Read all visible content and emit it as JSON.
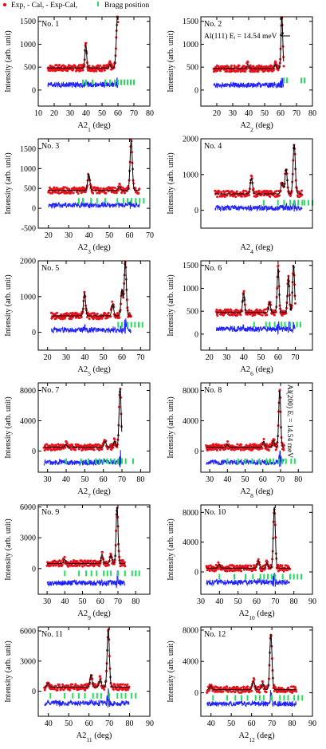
{
  "legend": {
    "exp_label": "Exp, - Cal, - Exp-Cal,",
    "bragg_label": "Bragg position"
  },
  "colors": {
    "exp": "#e8121d",
    "cal": "#000000",
    "diff": "#1f22ff",
    "bragg": "#22e05a"
  },
  "chart_data": [
    {
      "type": "scatter",
      "id": "No. 1",
      "title": "No. 1",
      "xlabel": "A2",
      "xsub": "1",
      "ylabel": "Intensity (arb. unit)",
      "xlim": [
        10,
        80
      ],
      "ylim": [
        -350,
        1600
      ],
      "xticks": [
        10,
        20,
        30,
        40,
        50,
        60,
        70,
        80
      ],
      "yticks": [
        0,
        500,
        1000,
        1500
      ],
      "data_range": [
        16,
        60
      ],
      "baseline": 480,
      "diff_offset": 120,
      "peaks": [
        {
          "x": 39.8,
          "y": 1000
        },
        {
          "x": 55,
          "y": 560
        },
        {
          "x": 58.9,
          "y": 800
        },
        {
          "x": 59.8,
          "y": 1550
        }
      ],
      "bragg_y": 160,
      "bragg_x": [
        38,
        40,
        44,
        52,
        55,
        58,
        60,
        62,
        64,
        66,
        68,
        70
      ]
    },
    {
      "type": "scatter",
      "id": "No. 2",
      "title": "No. 2",
      "xlabel": "A2",
      "xsub": "2",
      "ylabel": "Intensity (arb. unit)",
      "xlim": [
        10,
        80
      ],
      "ylim": [
        -350,
        1600
      ],
      "xticks": [
        20,
        30,
        40,
        50,
        60,
        70,
        80
      ],
      "yticks": [
        0,
        500,
        1000,
        1500
      ],
      "data_range": [
        18,
        62
      ],
      "baseline": 470,
      "diff_offset": 110,
      "peaks": [
        {
          "x": 39.5,
          "y": 560
        },
        {
          "x": 56.8,
          "y": 560
        },
        {
          "x": 60.8,
          "y": 1620
        }
      ],
      "bragg_y": 200,
      "bragg_x": [
        62,
        64,
        73,
        75
      ],
      "annotation": "Al(111) Eᵢ = 14.54 meV"
    },
    {
      "type": "scatter",
      "id": "No. 3",
      "title": "No. 3",
      "xlabel": "A2",
      "xsub": "3",
      "ylabel": "Intensity (arb. unit)",
      "xlim": [
        15,
        70
      ],
      "ylim": [
        -500,
        1750
      ],
      "xticks": [
        20,
        30,
        40,
        50,
        60,
        70
      ],
      "yticks": [
        -500,
        0,
        500,
        1000,
        1500
      ],
      "data_range": [
        20,
        65
      ],
      "baseline": 450,
      "diff_offset": 80,
      "peaks": [
        {
          "x": 39.9,
          "y": 860
        },
        {
          "x": 55,
          "y": 540
        },
        {
          "x": 60.8,
          "y": 1700
        }
      ],
      "bragg_y": 180,
      "bragg_x": [
        35,
        37,
        41,
        44,
        48,
        54,
        57,
        59,
        61,
        63,
        65,
        67
      ]
    },
    {
      "type": "scatter",
      "id": "No. 4",
      "title": "No. 4",
      "xlabel": "A2",
      "xsub": "4",
      "ylabel": "Intensity (arb. unit)",
      "xlim": [
        15,
        70
      ],
      "ylim": [
        -500,
        2000
      ],
      "xticks": [],
      "yticks": [
        0,
        1000,
        2000
      ],
      "data_range": [
        22,
        65
      ],
      "baseline": 460,
      "diff_offset": 60,
      "peaks": [
        {
          "x": 39.9,
          "y": 900
        },
        {
          "x": 55,
          "y": 780
        },
        {
          "x": 57,
          "y": 1150
        },
        {
          "x": 61,
          "y": 1850
        }
      ],
      "bragg_y": 200,
      "bragg_x": [
        46,
        53,
        56,
        59,
        61,
        63,
        65,
        66,
        68,
        70
      ]
    },
    {
      "type": "scatter",
      "id": "No. 5",
      "title": "No. 5",
      "xlabel": "A2",
      "xsub": "5",
      "ylabel": "Intensity (arb. unit)",
      "xlim": [
        15,
        75
      ],
      "ylim": [
        -500,
        2000
      ],
      "xticks": [
        20,
        30,
        40,
        50,
        60,
        70
      ],
      "yticks": [
        0,
        1000,
        2000
      ],
      "data_range": [
        22,
        65
      ],
      "baseline": 460,
      "diff_offset": 60,
      "peaks": [
        {
          "x": 39.9,
          "y": 1100
        },
        {
          "x": 55,
          "y": 800
        },
        {
          "x": 60,
          "y": 1200
        },
        {
          "x": 61.8,
          "y": 2000
        }
      ],
      "bragg_y": 200,
      "bragg_x": [
        58,
        60,
        63,
        65,
        67,
        69,
        71
      ]
    },
    {
      "type": "scatter",
      "id": "No. 6",
      "title": "No. 6",
      "xlabel": "A2",
      "xsub": "6",
      "ylabel": "Intensity (arb. unit)",
      "xlim": [
        15,
        80
      ],
      "ylim": [
        -350,
        1600
      ],
      "xticks": [
        20,
        30,
        40,
        50,
        60,
        70
      ],
      "yticks": [
        0,
        500,
        1000,
        1500
      ],
      "data_range": [
        24,
        70
      ],
      "baseline": 470,
      "diff_offset": 110,
      "peaks": [
        {
          "x": 39.9,
          "y": 900
        },
        {
          "x": 55,
          "y": 700
        },
        {
          "x": 60,
          "y": 1450
        },
        {
          "x": 66,
          "y": 1250
        },
        {
          "x": 69,
          "y": 1500
        }
      ],
      "bragg_y": 200,
      "bragg_x": [
        46,
        53,
        55,
        58,
        62,
        64,
        67,
        71,
        73
      ]
    },
    {
      "type": "scatter",
      "id": "No. 7",
      "title": "No. 7",
      "xlabel": "A2",
      "xsub": "7",
      "ylabel": "Intensity (arb. unit)",
      "xlim": [
        25,
        85
      ],
      "ylim": [
        -2800,
        9000
      ],
      "xticks": [
        30,
        40,
        50,
        60,
        70,
        80
      ],
      "yticks": [
        0,
        4000,
        8000
      ],
      "data_range": [
        28,
        70
      ],
      "baseline": 500,
      "diff_offset": -1500,
      "peaks": [
        {
          "x": 39.8,
          "y": 900
        },
        {
          "x": 61,
          "y": 1300
        },
        {
          "x": 66,
          "y": 1300
        },
        {
          "x": 69,
          "y": 8300
        }
      ],
      "bragg_y": -1400,
      "bragg_x": [
        40,
        48,
        52,
        56,
        58,
        60,
        62,
        64,
        66,
        68,
        70,
        72,
        76
      ]
    },
    {
      "type": "scatter",
      "id": "No. 8",
      "title": "No. 8",
      "xlabel": "A2",
      "xsub": "8",
      "ylabel": "Intensity (arb. unit)",
      "xlim": [
        25,
        88
      ],
      "ylim": [
        -2800,
        9000
      ],
      "xticks": [
        30,
        40,
        50,
        60,
        70,
        80
      ],
      "yticks": [
        0,
        4000,
        8000
      ],
      "data_range": [
        28,
        72
      ],
      "baseline": 500,
      "diff_offset": -1500,
      "peaks": [
        {
          "x": 39.8,
          "y": 900
        },
        {
          "x": 60.5,
          "y": 1300
        },
        {
          "x": 66,
          "y": 1400
        },
        {
          "x": 69.5,
          "y": 8000
        }
      ],
      "bragg_y": -1400,
      "bragg_x": [
        40,
        46,
        50,
        54,
        58,
        62,
        64,
        66,
        69,
        71,
        73,
        76,
        78
      ],
      "annotation": "Al(200)  Eᵢ = 14.54 meV"
    },
    {
      "type": "scatter",
      "id": "No. 9",
      "title": "No. 9",
      "xlabel": "A2",
      "xsub": "9",
      "ylabel": "Intensity (arb. unit)",
      "xlim": [
        25,
        88
      ],
      "ylim": [
        -2500,
        6200
      ],
      "xticks": [
        30,
        40,
        50,
        60,
        70,
        80
      ],
      "yticks": [
        0,
        3000,
        6000
      ],
      "data_range": [
        30,
        74
      ],
      "baseline": 500,
      "diff_offset": -1400,
      "peaks": [
        {
          "x": 39.8,
          "y": 900
        },
        {
          "x": 61,
          "y": 1400
        },
        {
          "x": 66,
          "y": 1300
        },
        {
          "x": 69.5,
          "y": 6000
        }
      ],
      "bragg_y": -500,
      "bragg_x": [
        40,
        48,
        52,
        55,
        58,
        62,
        64,
        66,
        70,
        74,
        78,
        80,
        82
      ]
    },
    {
      "type": "scatter",
      "id": "No. 10",
      "title": "No. 10",
      "xlabel": "A2",
      "xsub": "10",
      "ylabel": "Intensity (arb. unit)",
      "xlim": [
        30,
        90
      ],
      "ylim": [
        -3000,
        9000
      ],
      "xticks": [
        30,
        40,
        50,
        60,
        70,
        80,
        90
      ],
      "yticks": [
        0,
        4000,
        8000
      ],
      "data_range": [
        33,
        78
      ],
      "baseline": 500,
      "diff_offset": -1400,
      "peaks": [
        {
          "x": 39.8,
          "y": 1000
        },
        {
          "x": 61,
          "y": 1500
        },
        {
          "x": 65.5,
          "y": 1200
        },
        {
          "x": 69.5,
          "y": 8700
        }
      ],
      "bragg_y": -700,
      "bragg_x": [
        40,
        48,
        54,
        58,
        62,
        64,
        66,
        68,
        70,
        74,
        78,
        80,
        82,
        84
      ]
    },
    {
      "type": "scatter",
      "id": "No. 11",
      "title": "No. 11",
      "xlabel": "A2",
      "xsub": "11",
      "ylabel": "Intensity (arb. unit)",
      "xlim": [
        35,
        90
      ],
      "ylim": [
        -2500,
        6400
      ],
      "xticks": [
        40,
        50,
        60,
        70,
        80,
        90
      ],
      "yticks": [
        0,
        3000,
        6000
      ],
      "data_range": [
        38,
        80
      ],
      "baseline": 400,
      "diff_offset": -1200,
      "peaks": [
        {
          "x": 39.8,
          "y": 800
        },
        {
          "x": 61,
          "y": 1600
        },
        {
          "x": 65.5,
          "y": 1200
        },
        {
          "x": 69.5,
          "y": 6200
        }
      ],
      "bragg_y": -500,
      "bragg_x": [
        41,
        48,
        52,
        55,
        58,
        62,
        64,
        66,
        70,
        74,
        76,
        78,
        81,
        83
      ]
    },
    {
      "type": "scatter",
      "id": "No. 12",
      "title": "No. 12",
      "xlabel": "A2",
      "xsub": "12",
      "ylabel": "Intensity (arb. unit)",
      "xlim": [
        35,
        90
      ],
      "ylim": [
        -3000,
        8400
      ],
      "xticks": [
        40,
        50,
        60,
        70,
        80,
        90
      ],
      "yticks": [
        0,
        4000,
        8000
      ],
      "data_range": [
        38,
        82
      ],
      "baseline": 400,
      "diff_offset": -1400,
      "peaks": [
        {
          "x": 39.8,
          "y": 900
        },
        {
          "x": 61,
          "y": 1500
        },
        {
          "x": 65.5,
          "y": 1200
        },
        {
          "x": 69.5,
          "y": 7500
        }
      ],
      "bragg_y": -700,
      "bragg_x": [
        41,
        48,
        52,
        55,
        58,
        62,
        64,
        66,
        70,
        74,
        76,
        78,
        81,
        83,
        85
      ]
    }
  ]
}
